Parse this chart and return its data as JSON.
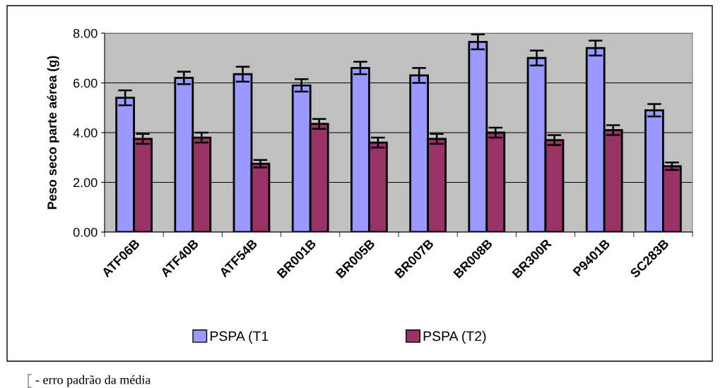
{
  "chart_data": {
    "type": "bar",
    "ylabel": "Peso seco parte aérea (g)",
    "categories": [
      "ATF06B",
      "ATF40B",
      "ATF54B",
      "BR001B",
      "BR005B",
      "BR007B",
      "BR008B",
      "BR300R",
      "P9401B",
      "SC283B"
    ],
    "series": [
      {
        "name": "PSPA (T1",
        "color": "#9999ff",
        "values": [
          5.4,
          6.2,
          6.35,
          5.9,
          6.6,
          6.3,
          7.65,
          7.0,
          7.4,
          4.9
        ],
        "errors": [
          0.3,
          0.25,
          0.3,
          0.25,
          0.25,
          0.3,
          0.3,
          0.3,
          0.3,
          0.25
        ]
      },
      {
        "name": "PSPA (T2)",
        "color": "#993366",
        "values": [
          3.75,
          3.8,
          2.75,
          4.35,
          3.6,
          3.75,
          4.0,
          3.7,
          4.1,
          2.65
        ],
        "errors": [
          0.2,
          0.2,
          0.15,
          0.2,
          0.2,
          0.2,
          0.2,
          0.2,
          0.2,
          0.15
        ]
      }
    ],
    "ylim": [
      0,
      8
    ],
    "yticks": [
      {
        "value": 0,
        "label": "0.00"
      },
      {
        "value": 2,
        "label": "2.00"
      },
      {
        "value": 4,
        "label": "4.00"
      },
      {
        "value": 6,
        "label": "6.00"
      },
      {
        "value": 8,
        "label": "8.00"
      }
    ],
    "grid": "y",
    "legend": "bottom",
    "annotations": [
      "- erro padrão da média"
    ]
  }
}
